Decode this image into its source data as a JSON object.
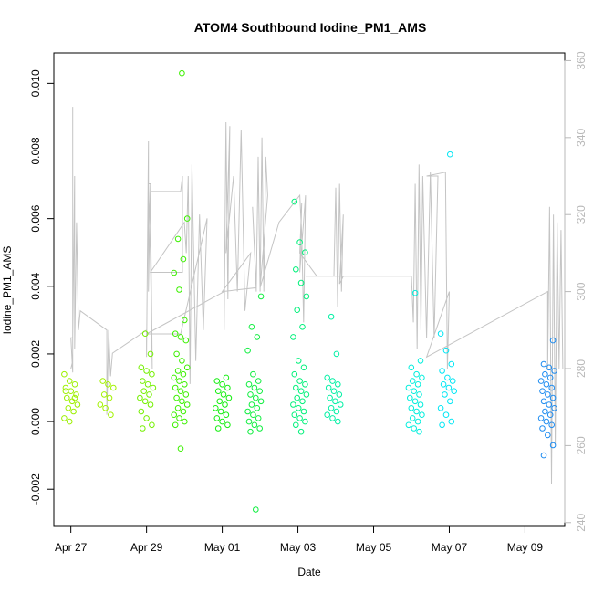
{
  "chart_data": {
    "type": "scatter",
    "title": "ATOM4 Southbound Iodine_PM1_AMS",
    "xlabel": "Date",
    "ylabel": "Iodine_PM1_AMS",
    "x_unit": "days since Apr 27",
    "xlim": [
      -0.45,
      13.05
    ],
    "ylim": [
      -0.0031,
      0.0109
    ],
    "y2lim": [
      239,
      362
    ],
    "x_ticks": [
      {
        "value": 0,
        "label": "Apr 27"
      },
      {
        "value": 2,
        "label": "Apr 29"
      },
      {
        "value": 4,
        "label": "May 01"
      },
      {
        "value": 6,
        "label": "May 03"
      },
      {
        "value": 8,
        "label": "May 05"
      },
      {
        "value": 10,
        "label": "May 07"
      },
      {
        "value": 12,
        "label": "May 09"
      }
    ],
    "y_ticks": [
      {
        "value": -0.002,
        "label": "-0.002"
      },
      {
        "value": 0.0,
        "label": "0.000"
      },
      {
        "value": 0.002,
        "label": "0.002"
      },
      {
        "value": 0.004,
        "label": "0.004"
      },
      {
        "value": 0.006,
        "label": "0.006"
      },
      {
        "value": 0.008,
        "label": "0.008"
      },
      {
        "value": 0.01,
        "label": "0.010"
      }
    ],
    "y2_ticks": [
      {
        "value": 240,
        "label": "240"
      },
      {
        "value": 260,
        "label": "260"
      },
      {
        "value": 280,
        "label": "280"
      },
      {
        "value": 300,
        "label": "300"
      },
      {
        "value": 320,
        "label": "320"
      },
      {
        "value": 340,
        "label": "340"
      },
      {
        "value": 360,
        "label": "360"
      }
    ],
    "clusters": [
      {
        "x": 0.0,
        "color": "#9cf000",
        "base": [
          0.0014,
          0.0012,
          0.0011,
          0.001,
          0.0009,
          0.0008,
          0.0007,
          0.0006,
          0.0005,
          0.0004,
          0.0003,
          0.0001,
          0.0,
          0.0007,
          0.0009
        ]
      },
      {
        "x": 0.95,
        "color": "#a2f200",
        "base": [
          0.0012,
          0.0011,
          0.001,
          0.0008,
          0.0007,
          0.0005,
          0.0004,
          0.0002
        ]
      },
      {
        "x": 2.0,
        "color": "#74f000",
        "base": [
          0.0026,
          0.002,
          0.0016,
          0.0015,
          0.0014,
          0.0012,
          0.0011,
          0.001,
          0.0009,
          0.0008,
          0.0007,
          0.0006,
          0.0005,
          0.0003,
          0.0001,
          -0.0001,
          -0.0002
        ]
      },
      {
        "x": 2.9,
        "color": "#3cf000",
        "base": [
          0.0103,
          0.006,
          0.0054,
          0.0048,
          0.0044,
          0.0039,
          0.003,
          0.0026,
          0.0025,
          0.0024,
          0.002,
          0.0018,
          0.0016,
          0.0015,
          0.0014,
          0.0013,
          0.0012,
          0.0011,
          0.001,
          0.0009,
          0.0008,
          0.0007,
          0.0006,
          0.0005,
          0.0004,
          0.0003,
          0.0002,
          0.0001,
          0.0,
          -0.0001,
          -0.0008
        ]
      },
      {
        "x": 4.0,
        "color": "#14ee10",
        "base": [
          0.0013,
          0.0012,
          0.0011,
          0.001,
          0.0009,
          0.0008,
          0.0007,
          0.0006,
          0.0005,
          0.0004,
          0.0003,
          0.0002,
          0.0001,
          0.0,
          -0.0001,
          -0.0002
        ]
      },
      {
        "x": 4.85,
        "color": "#10ee40",
        "base": [
          0.0037,
          0.0028,
          0.0025,
          0.0021,
          0.0014,
          0.0012,
          0.0011,
          0.001,
          0.0009,
          0.0008,
          0.0007,
          0.0006,
          0.0005,
          0.0004,
          0.0003,
          0.0002,
          0.0001,
          0.0,
          -0.0001,
          -0.0002,
          -0.0003,
          -0.0026
        ]
      },
      {
        "x": 6.05,
        "color": "#00f07a",
        "base": [
          0.0065,
          0.0053,
          0.005,
          0.0045,
          0.0041,
          0.0037,
          0.0033,
          0.0028,
          0.0025,
          0.0018,
          0.0016,
          0.0014,
          0.0012,
          0.0011,
          0.001,
          0.0009,
          0.0008,
          0.0007,
          0.0006,
          0.0005,
          0.0004,
          0.0003,
          0.0002,
          0.0001,
          0.0,
          -0.0001,
          -0.0003
        ]
      },
      {
        "x": 6.95,
        "color": "#00f0a4",
        "base": [
          0.0031,
          0.002,
          0.0013,
          0.0012,
          0.0011,
          0.001,
          0.0009,
          0.0008,
          0.0007,
          0.0006,
          0.0005,
          0.0004,
          0.0003,
          0.0002,
          0.0001,
          0.0
        ]
      },
      {
        "x": 9.1,
        "color": "#00eedc",
        "base": [
          0.0038,
          0.0018,
          0.0016,
          0.0014,
          0.0013,
          0.0012,
          0.0011,
          0.001,
          0.0009,
          0.0008,
          0.0007,
          0.0006,
          0.0005,
          0.0004,
          0.0003,
          0.0002,
          0.0001,
          0.0,
          -0.0001,
          -0.0002,
          -0.0003
        ]
      },
      {
        "x": 9.95,
        "color": "#00e6f4",
        "base": [
          0.0079,
          0.0026,
          0.0021,
          0.0017,
          0.0015,
          0.0013,
          0.0012,
          0.0011,
          0.001,
          0.0009,
          0.0008,
          0.0006,
          0.0004,
          0.0002,
          0.0,
          -0.0001
        ]
      },
      {
        "x": 12.6,
        "color": "#1e8cf0",
        "base": [
          0.0024,
          0.0017,
          0.0016,
          0.0015,
          0.0014,
          0.0013,
          0.0012,
          0.0011,
          0.001,
          0.0009,
          0.0008,
          0.0007,
          0.0006,
          0.0005,
          0.0004,
          0.0003,
          0.0002,
          0.0001,
          0.0,
          -0.0001,
          -0.0002,
          -0.0004,
          -0.0007,
          -0.001
        ]
      }
    ],
    "line_series": {
      "name": "secondary (grey)",
      "color": "#c4c4c4",
      "points": [
        [
          0.0,
          280
        ],
        [
          0.05,
          282
        ],
        [
          0.05,
          289
        ],
        [
          0.05,
          348
        ],
        [
          0.05,
          279
        ],
        [
          0.0,
          288
        ],
        [
          0.05,
          288
        ],
        [
          0.1,
          330
        ],
        [
          0.1,
          285
        ],
        [
          0.15,
          318
        ],
        [
          0.2,
          290
        ],
        [
          0.25,
          295
        ],
        [
          0.95,
          290
        ],
        [
          0.95,
          268
        ],
        [
          1.0,
          290
        ],
        [
          1.05,
          278
        ],
        [
          1.1,
          284
        ],
        [
          2.0,
          290
        ],
        [
          2.0,
          283
        ],
        [
          2.05,
          339
        ],
        [
          2.05,
          300
        ],
        [
          2.1,
          328
        ],
        [
          2.05,
          328
        ],
        [
          2.1,
          310
        ],
        [
          2.15,
          280
        ],
        [
          2.1,
          326
        ],
        [
          2.9,
          326
        ],
        [
          2.95,
          330
        ],
        [
          2.95,
          305
        ],
        [
          2.1,
          305
        ],
        [
          3.0,
          318
        ],
        [
          3.05,
          310
        ],
        [
          3.1,
          330
        ],
        [
          3.15,
          276
        ],
        [
          3.2,
          333
        ],
        [
          3.3,
          282
        ],
        [
          3.4,
          320
        ],
        [
          3.5,
          290
        ],
        [
          3.6,
          319
        ],
        [
          2.9,
          289
        ],
        [
          2.0,
          289
        ],
        [
          4.05,
          300
        ],
        [
          4.05,
          290
        ],
        [
          4.1,
          344
        ],
        [
          4.15,
          298
        ],
        [
          4.2,
          343
        ],
        [
          4.1,
          310
        ],
        [
          4.3,
          330
        ],
        [
          4.4,
          300
        ],
        [
          4.5,
          342
        ],
        [
          4.6,
          295
        ],
        [
          4.75,
          310
        ],
        [
          4.0,
          300
        ],
        [
          4.9,
          301
        ],
        [
          4.8,
          322
        ],
        [
          4.9,
          300
        ],
        [
          4.95,
          335
        ],
        [
          5.0,
          300
        ],
        [
          5.05,
          340
        ],
        [
          5.1,
          300
        ],
        [
          5.15,
          335
        ],
        [
          5.2,
          325
        ],
        [
          5.0,
          301
        ],
        [
          5.5,
          318
        ],
        [
          6.05,
          325
        ],
        [
          6.1,
          315
        ],
        [
          6.15,
          292
        ],
        [
          6.2,
          325
        ],
        [
          6.05,
          305
        ],
        [
          6.1,
          323
        ],
        [
          6.05,
          310
        ],
        [
          6.5,
          304
        ],
        [
          6.95,
          304
        ],
        [
          7.0,
          327
        ],
        [
          7.05,
          296
        ],
        [
          7.1,
          328
        ],
        [
          7.15,
          300
        ],
        [
          7.2,
          320
        ],
        [
          7.1,
          302
        ],
        [
          7.2,
          304
        ],
        [
          6.2,
          304
        ],
        [
          9.0,
          304
        ],
        [
          9.05,
          292
        ],
        [
          9.1,
          328
        ],
        [
          9.15,
          285
        ],
        [
          9.2,
          333
        ],
        [
          9.25,
          290
        ],
        [
          9.3,
          330
        ],
        [
          9.4,
          288
        ],
        [
          9.5,
          331
        ],
        [
          9.6,
          288
        ],
        [
          9.7,
          330
        ],
        [
          9.4,
          330
        ],
        [
          9.9,
          331
        ],
        [
          9.95,
          280
        ],
        [
          10.0,
          300
        ],
        [
          9.4,
          283
        ],
        [
          12.6,
          300
        ],
        [
          12.6,
          280
        ],
        [
          12.65,
          322
        ],
        [
          12.7,
          250
        ],
        [
          12.75,
          320
        ],
        [
          12.8,
          260
        ],
        [
          12.85,
          318
        ],
        [
          12.9,
          280
        ],
        [
          12.95,
          316
        ],
        [
          13.0,
          280
        ]
      ]
    }
  }
}
